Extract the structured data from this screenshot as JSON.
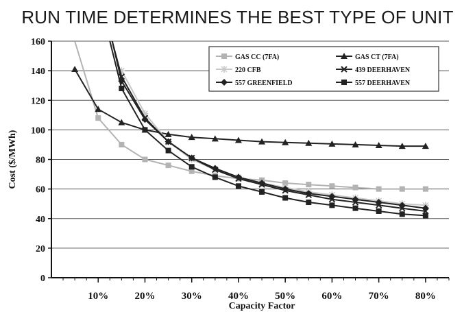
{
  "chart_data": {
    "type": "line",
    "title": "RUN TIME DETERMINES THE BEST TYPE OF UNIT",
    "xlabel": "Capacity Factor",
    "ylabel": "Cost ($/MWh)",
    "xlim": [
      0.0,
      0.85
    ],
    "ylim": [
      0,
      160
    ],
    "y_ticks": [
      0,
      20,
      40,
      60,
      80,
      100,
      120,
      140,
      160
    ],
    "x_ticks": [
      0.1,
      0.2,
      0.3,
      0.4,
      0.5,
      0.6,
      0.7,
      0.8
    ],
    "x_tick_labels": [
      "10%",
      "20%",
      "30%",
      "40%",
      "50%",
      "60%",
      "70%",
      "80%"
    ],
    "grid": "horizontal",
    "legend_position": "top-right",
    "series": [
      {
        "name": "GAS CC (7FA)",
        "color": "#b3b3b3",
        "marker": "square",
        "x": [
          0.05,
          0.1,
          0.15,
          0.2,
          0.25,
          0.3,
          0.35,
          0.4,
          0.45,
          0.5,
          0.55,
          0.6,
          0.65,
          0.7,
          0.75,
          0.8
        ],
        "y": [
          160,
          108,
          90,
          80,
          76,
          72,
          69,
          67,
          66,
          64,
          63,
          62,
          61,
          60,
          60,
          60
        ]
      },
      {
        "name": "GAS CT (7FA)",
        "color": "#222222",
        "marker": "triangle",
        "x": [
          0.05,
          0.1,
          0.15,
          0.2,
          0.25,
          0.3,
          0.35,
          0.4,
          0.45,
          0.5,
          0.55,
          0.6,
          0.65,
          0.7,
          0.75,
          0.8
        ],
        "y": [
          141,
          114,
          105,
          100,
          97,
          95,
          94,
          93,
          92,
          91.5,
          91,
          90.5,
          90,
          89.5,
          89,
          89
        ]
      },
      {
        "name": "220 CFB",
        "color": "#c8c8c8",
        "marker": "star",
        "x": [
          0.15,
          0.2,
          0.25,
          0.3,
          0.35,
          0.4,
          0.45,
          0.5,
          0.55,
          0.6,
          0.65,
          0.7,
          0.75,
          0.8
        ],
        "y": [
          140,
          111,
          92,
          80,
          73,
          68,
          64,
          61,
          58,
          56,
          54,
          52,
          50,
          49
        ]
      },
      {
        "name": "439 DEERHAVEN",
        "color": "#222222",
        "marker": "x",
        "x": [
          0.13,
          0.15,
          0.2,
          0.25,
          0.3,
          0.35,
          0.4,
          0.45,
          0.5,
          0.55,
          0.6,
          0.65,
          0.7,
          0.75,
          0.8
        ],
        "y": [
          160,
          136,
          108,
          92,
          81,
          73,
          67,
          63,
          59,
          56,
          53,
          51,
          49,
          47,
          45
        ]
      },
      {
        "name": "557 GREENFIELD",
        "color": "#222222",
        "marker": "diamond",
        "x": [
          0.13,
          0.15,
          0.2,
          0.25,
          0.3,
          0.35,
          0.4,
          0.45,
          0.5,
          0.55,
          0.6,
          0.65,
          0.7,
          0.75,
          0.8
        ],
        "y": [
          160,
          133,
          107,
          92,
          81,
          74,
          68,
          64,
          60,
          57,
          55,
          53,
          51,
          49,
          47
        ]
      },
      {
        "name": "557 DEERHAVEN",
        "color": "#222222",
        "marker": "square",
        "x": [
          0.125,
          0.15,
          0.2,
          0.25,
          0.3,
          0.35,
          0.4,
          0.45,
          0.5,
          0.55,
          0.6,
          0.65,
          0.7,
          0.75,
          0.8
        ],
        "y": [
          160,
          128,
          100,
          86,
          75,
          68,
          62,
          58,
          54,
          51,
          49,
          47,
          45,
          43,
          42
        ]
      }
    ]
  }
}
